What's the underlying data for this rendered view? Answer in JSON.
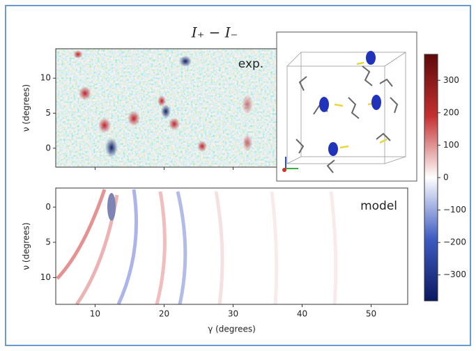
{
  "chart_data": [
    {
      "type": "heatmap",
      "title": "I₊ − I₋",
      "annotation": "exp.",
      "ylabel": "ν (degrees)",
      "xlim": [
        4.3,
        55.3
      ],
      "ylim": [
        -2.7,
        14.2
      ],
      "yticks": [
        0,
        5,
        10
      ]
    },
    {
      "type": "heatmap",
      "annotation": "model",
      "xlabel": "γ (degrees)",
      "ylabel": "ν (degrees)",
      "xlim": [
        4.3,
        55.3
      ],
      "ylim": [
        -2.7,
        13.8
      ],
      "invert_y": true,
      "xticks": [
        10,
        20,
        30,
        40,
        50
      ],
      "yticks": [
        0,
        5,
        10
      ]
    },
    {
      "type": "colorbar",
      "colormap": [
        "#0b1860",
        "#3d5bc0",
        "#ffffff",
        "#c43030",
        "#5e0a0a"
      ],
      "clim": [
        -380,
        380
      ],
      "ticks": [
        {
          "value": -300,
          "label": "−300"
        },
        {
          "value": -200,
          "label": "−200"
        },
        {
          "value": -100,
          "label": "−100"
        },
        0,
        100,
        200,
        300
      ]
    }
  ]
}
